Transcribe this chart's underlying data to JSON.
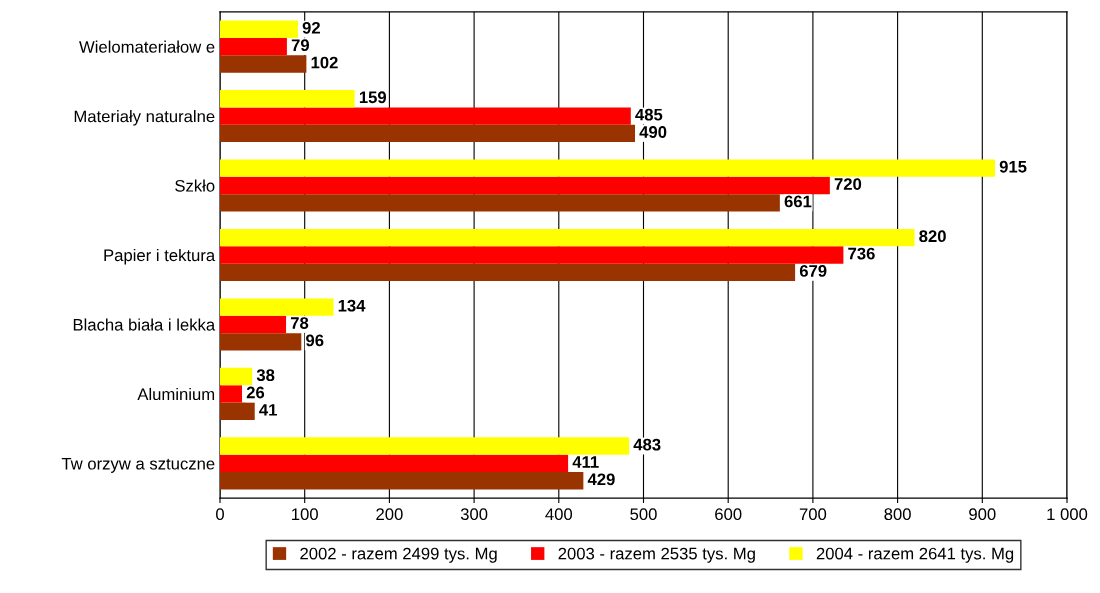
{
  "chart_data": {
    "type": "bar",
    "orientation": "horizontal",
    "categories": [
      "Wielomateriałow e",
      "Materiały naturalne",
      "Szkło",
      "Papier i tektura",
      "Blacha biała i lekka",
      "Aluminium",
      "Tw orzyw a sztuczne"
    ],
    "series": [
      {
        "name": "2002 - razem 2499 tys. Mg",
        "color": "#993300",
        "values": [
          102,
          490,
          661,
          679,
          96,
          41,
          429
        ]
      },
      {
        "name": "2003 - razem 2535 tys. Mg",
        "color": "#ff0000",
        "values": [
          79,
          485,
          720,
          736,
          78,
          26,
          411
        ]
      },
      {
        "name": "2004 - razem 2641 tys. Mg",
        "color": "#ffff00",
        "values": [
          92,
          159,
          915,
          820,
          134,
          38,
          483
        ]
      }
    ],
    "xlim": [
      0,
      1000
    ],
    "xticks": [
      0,
      100,
      200,
      300,
      400,
      500,
      600,
      700,
      800,
      900,
      {
        "value": 1000,
        "label": "1 000"
      }
    ],
    "grid": "x",
    "legend": "bottom",
    "data_labels": true
  }
}
